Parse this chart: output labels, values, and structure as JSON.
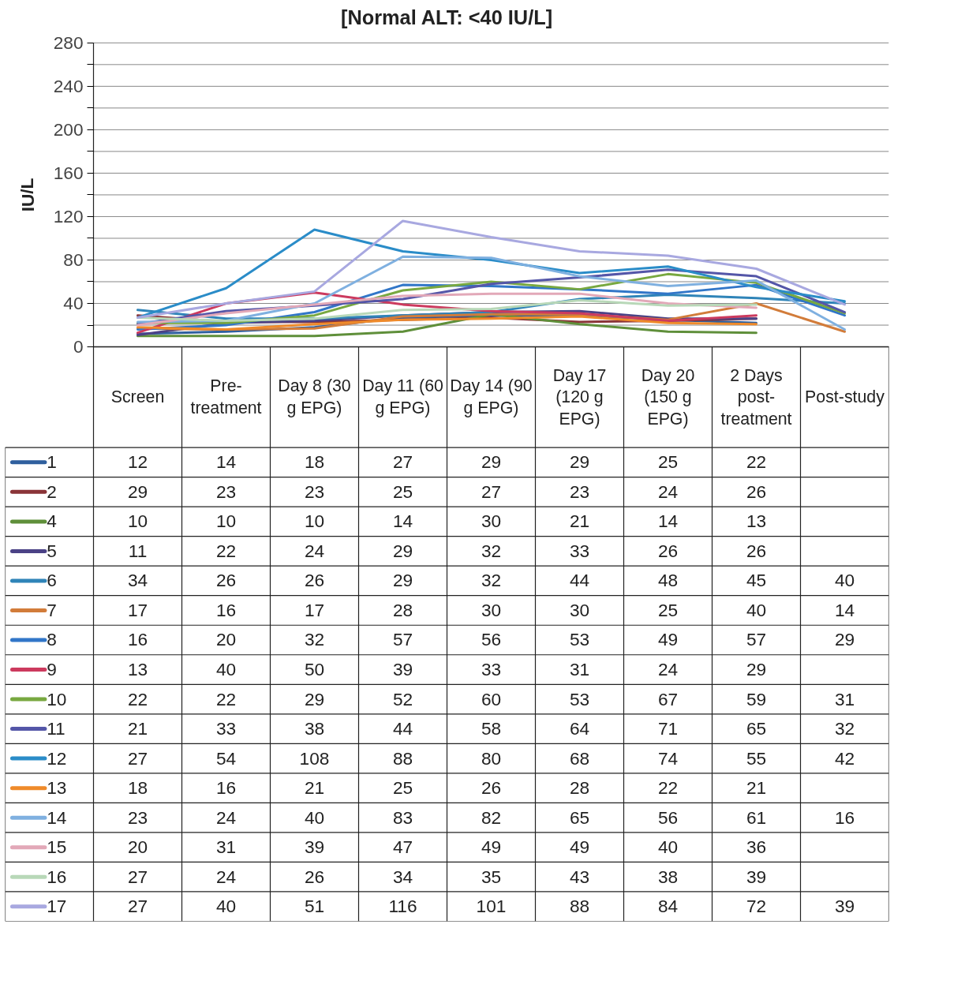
{
  "chart_data": {
    "type": "line",
    "title": "[Normal ALT: <40 IU/L]",
    "ylabel": "IU/L",
    "categories": [
      "Screen",
      "Pre-treatment",
      "Day 8 (30 g EPG)",
      "Day 11 (60 g EPG)",
      "Day 14 (90 g EPG)",
      "Day 17 (120 g EPG)",
      "Day 20 (150 g EPG)",
      "2 Days post-treatment",
      "Post-study"
    ],
    "ylim": [
      0,
      280
    ],
    "yticks": [
      0,
      {
        "value": 20,
        "label": null
      },
      40,
      {
        "value": 60,
        "label": null
      },
      80,
      {
        "value": 100,
        "label": null
      },
      120,
      {
        "value": 140,
        "label": null
      },
      160,
      {
        "value": 180,
        "label": null
      },
      200,
      {
        "value": 220,
        "label": null
      },
      240,
      {
        "value": 260,
        "label": null
      },
      280
    ],
    "grid": "y",
    "legend": "bottom",
    "data_labels": true,
    "series": [
      {
        "name": "1",
        "color": "#2f5f9e",
        "values": [
          12,
          14,
          18,
          27,
          29,
          29,
          25,
          22,
          null
        ]
      },
      {
        "name": "2",
        "color": "#8a3438",
        "values": [
          29,
          23,
          23,
          25,
          27,
          23,
          24,
          26,
          null
        ]
      },
      {
        "name": "4",
        "color": "#5f8f3a",
        "values": [
          10,
          10,
          10,
          14,
          30,
          21,
          14,
          13,
          null
        ]
      },
      {
        "name": "5",
        "color": "#4b4286",
        "values": [
          11,
          22,
          24,
          29,
          32,
          33,
          26,
          26,
          null
        ]
      },
      {
        "name": "6",
        "color": "#2f84b8",
        "values": [
          34,
          26,
          26,
          29,
          32,
          44,
          48,
          45,
          40
        ]
      },
      {
        "name": "7",
        "color": "#d27c3a",
        "values": [
          17,
          16,
          17,
          28,
          30,
          30,
          25,
          40,
          14
        ]
      },
      {
        "name": "8",
        "color": "#3176c8",
        "values": [
          16,
          20,
          32,
          57,
          56,
          53,
          49,
          57,
          29
        ]
      },
      {
        "name": "9",
        "color": "#cc3a5e",
        "values": [
          13,
          40,
          50,
          39,
          33,
          31,
          24,
          29,
          null
        ]
      },
      {
        "name": "10",
        "color": "#78a840",
        "values": [
          22,
          22,
          29,
          52,
          60,
          53,
          67,
          59,
          31
        ]
      },
      {
        "name": "11",
        "color": "#5456a8",
        "values": [
          21,
          33,
          38,
          44,
          58,
          64,
          71,
          65,
          32
        ]
      },
      {
        "name": "12",
        "color": "#2a8cc8",
        "values": [
          27,
          54,
          108,
          88,
          80,
          68,
          74,
          55,
          42
        ]
      },
      {
        "name": "13",
        "color": "#ef8a2a",
        "values": [
          18,
          16,
          21,
          25,
          26,
          28,
          22,
          21,
          null
        ]
      },
      {
        "name": "14",
        "color": "#7fb0e0",
        "values": [
          23,
          24,
          40,
          83,
          82,
          65,
          56,
          61,
          16
        ]
      },
      {
        "name": "15",
        "color": "#e2a8b8",
        "values": [
          20,
          31,
          39,
          47,
          49,
          49,
          40,
          36,
          null
        ]
      },
      {
        "name": "16",
        "color": "#b8d8b8",
        "values": [
          27,
          24,
          26,
          34,
          35,
          43,
          38,
          39,
          null
        ]
      },
      {
        "name": "17",
        "color": "#a8a8e0",
        "values": [
          27,
          40,
          51,
          116,
          101,
          88,
          84,
          72,
          39
        ]
      }
    ]
  }
}
